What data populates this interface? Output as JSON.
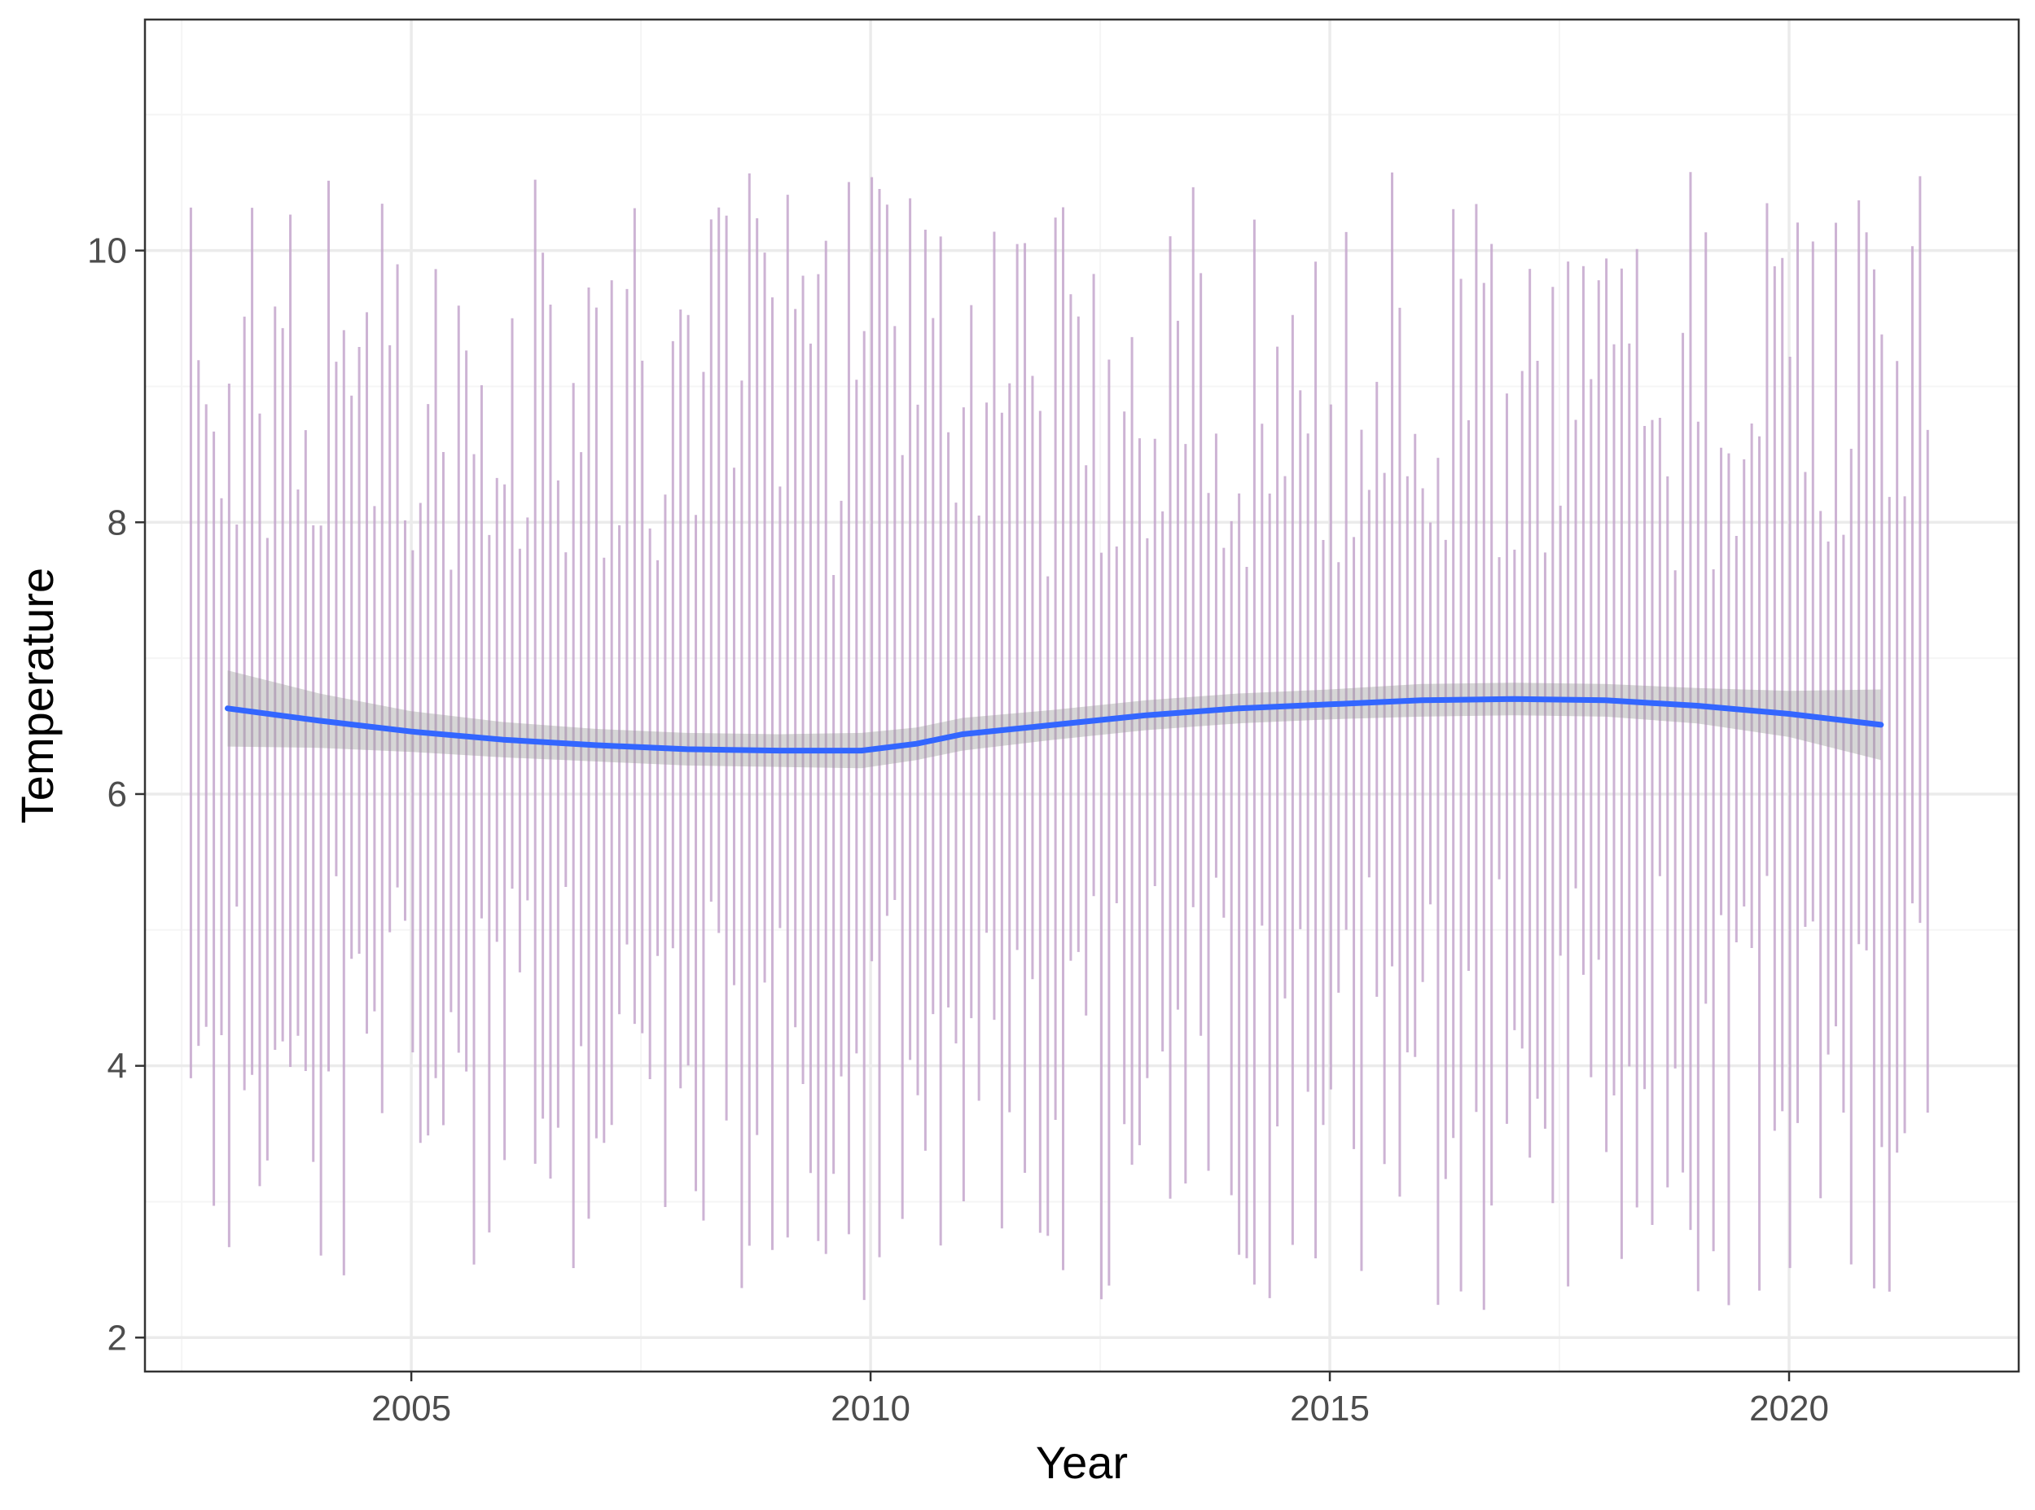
{
  "chart_data": {
    "type": "line",
    "title": "",
    "xlabel": "Year",
    "ylabel": "Temperature",
    "xlim": [
      2002.1,
      2022.5
    ],
    "ylim": [
      1.75,
      11.7
    ],
    "x_ticks": [
      2005,
      2010,
      2015,
      2020
    ],
    "y_ticks": [
      2,
      4,
      6,
      8,
      10
    ],
    "x_tick_labels": [
      "2005",
      "2010",
      "2015",
      "2020"
    ],
    "y_tick_labels": [
      "2",
      "4",
      "6",
      "8",
      "10"
    ],
    "grid": true,
    "legend": "none",
    "colors": {
      "range_bars": "#c4a6cc",
      "smooth_line": "#3366ff",
      "confidence_band": "#999999",
      "grid_major": "#ebebeb",
      "grid_minor": "#f5f5f5",
      "panel_border": "#333333"
    },
    "series": [
      {
        "kind": "range-bars",
        "note_on_values": "approximate monthly low/high ranges read off the chart",
        "x_start": 2002.6,
        "x_step": 0.0833,
        "count": 228,
        "mid_wave": {
          "base": 6.5,
          "amp": 0.6
        },
        "low_range": [
          2.2,
          5.4
        ],
        "high_range": [
          7.6,
          10.6
        ]
      },
      {
        "kind": "smooth",
        "x": [
          2003.0,
          2004.0,
          2005.0,
          2006.0,
          2007.0,
          2008.0,
          2009.0,
          2009.9,
          2010.5,
          2011.0,
          2012.0,
          2013.0,
          2014.0,
          2015.0,
          2016.0,
          2017.0,
          2018.0,
          2019.0,
          2020.0,
          2021.0
        ],
        "y": [
          6.63,
          6.54,
          6.46,
          6.4,
          6.36,
          6.33,
          6.32,
          6.32,
          6.37,
          6.44,
          6.51,
          6.58,
          6.63,
          6.66,
          6.69,
          6.7,
          6.69,
          6.65,
          6.59,
          6.51
        ],
        "band_half_width": [
          0.28,
          0.2,
          0.15,
          0.13,
          0.12,
          0.12,
          0.12,
          0.13,
          0.12,
          0.12,
          0.11,
          0.11,
          0.11,
          0.11,
          0.12,
          0.12,
          0.12,
          0.13,
          0.17,
          0.26
        ]
      }
    ]
  }
}
